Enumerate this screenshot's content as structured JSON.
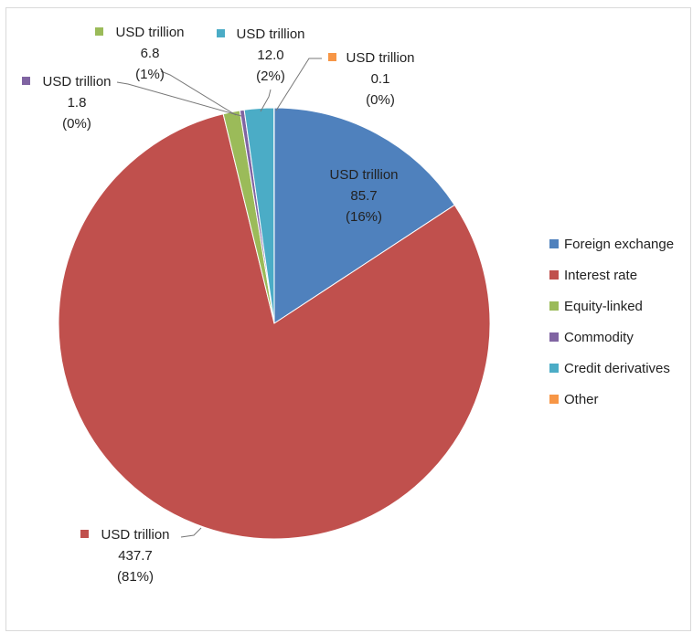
{
  "chart_data": {
    "type": "pie",
    "title": "",
    "slices": [
      {
        "label": "Foreign exchange",
        "value": 85.7,
        "unit": "USD trillion",
        "value_text": "85.7",
        "pct_text": "(16%)",
        "color": "#4f81bd"
      },
      {
        "label": "Interest rate",
        "value": 437.7,
        "unit": "USD trillion",
        "value_text": "437.7",
        "pct_text": "(81%)",
        "color": "#c0504d"
      },
      {
        "label": "Equity-linked",
        "value": 6.8,
        "unit": "USD trillion",
        "value_text": "6.8",
        "pct_text": "(1%)",
        "color": "#9bbb59"
      },
      {
        "label": "Commodity",
        "value": 1.8,
        "unit": "USD trillion",
        "value_text": "1.8",
        "pct_text": "(0%)",
        "color": "#8064a2"
      },
      {
        "label": "Credit derivatives",
        "value": 12.0,
        "unit": "USD trillion",
        "value_text": "12.0",
        "pct_text": "(2%)",
        "color": "#4bacc6"
      },
      {
        "label": "Other",
        "value": 0.1,
        "unit": "USD trillion",
        "value_text": "0.1",
        "pct_text": "(0%)",
        "color": "#f79646"
      }
    ],
    "legend_position": "right"
  }
}
